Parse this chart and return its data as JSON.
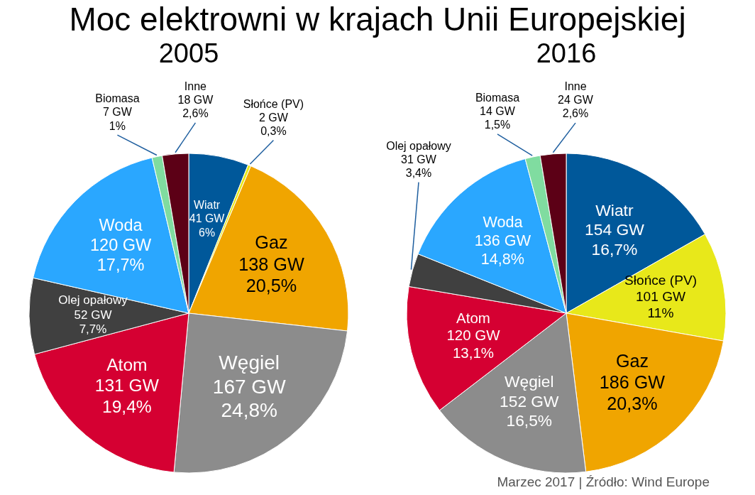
{
  "chart_data": [
    {
      "type": "pie",
      "title": "Moc elektrowni w krajach Unii Europejskiej",
      "subtitle": "2005",
      "categories": [
        "Wiatr",
        "Słońce (PV)",
        "Gaz",
        "Węgiel",
        "Atom",
        "Olej opałowy",
        "Woda",
        "Biomasa",
        "Inne"
      ],
      "values": [
        41,
        2,
        138,
        167,
        131,
        52,
        120,
        7,
        18
      ],
      "colors": [
        "#00589a",
        "#e8e81a",
        "#f0a500",
        "#8c8c8c",
        "#d50032",
        "#404040",
        "#2aa7ff",
        "#80dca0",
        "#5c0016"
      ],
      "value_labels": [
        "41 GW\n6%",
        "2 GW\n0,3%",
        "138 GW\n20,5%",
        "167 GW\n24,8%",
        "131 GW\n19,4%",
        "52 GW\n7,7%",
        "120 GW\n17,7%",
        "7 GW\n1%",
        "18 GW\n2,6%"
      ]
    },
    {
      "type": "pie",
      "title": "2016",
      "categories": [
        "Wiatr",
        "Słońce (PV)",
        "Gaz",
        "Węgiel",
        "Atom",
        "Olej opałowy",
        "Woda",
        "Biomasa",
        "Inne"
      ],
      "values": [
        154,
        101,
        186,
        152,
        120,
        31,
        136,
        14,
        24
      ],
      "colors": [
        "#00589a",
        "#e8e81a",
        "#f0a500",
        "#8c8c8c",
        "#d50032",
        "#404040",
        "#2aa7ff",
        "#80dca0",
        "#5c0016"
      ],
      "value_labels": [
        "154 GW\n16,7%",
        "101 GW\n11%",
        "186 GW\n20,3%",
        "152 GW\n16,5%",
        "120 GW\n13,1%",
        "31 GW\n3,4%",
        "136 GW\n14,8%",
        "14 GW\n1,5%",
        "24 GW\n2,6%"
      ],
      "annotations": [
        "Marzec 2017   |   Źródło: Wind Europe"
      ]
    }
  ]
}
